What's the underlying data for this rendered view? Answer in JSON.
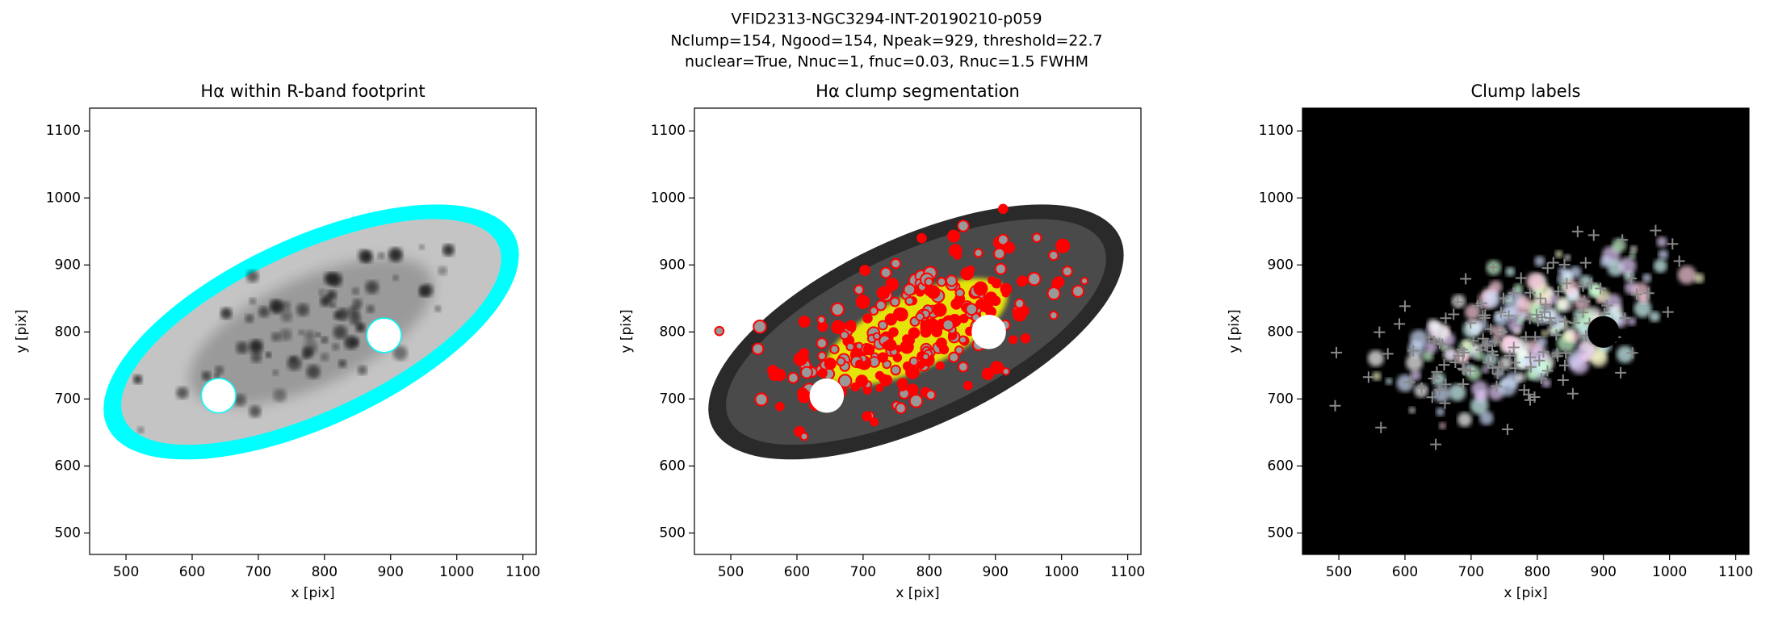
{
  "suptitle": [
    "VFID2313-NGC3294-INT-20190210-p059",
    "Nclump=154, Ngood=154, Npeak=929, threshold=22.7",
    "nuclear=True, Nnuc=1, fnuc=0.03, Rnuc=1.5 FWHM"
  ],
  "chart_data": [
    {
      "type": "image",
      "title": "Hα within R-band footprint",
      "xlabel": "x [pix]",
      "ylabel": "y [pix]",
      "xlim": [
        445,
        1120
      ],
      "ylim": [
        468,
        1134
      ],
      "xticks": [
        500,
        600,
        700,
        800,
        900,
        1000,
        1100
      ],
      "yticks": [
        500,
        600,
        700,
        800,
        900,
        1000,
        1100
      ]
    },
    {
      "type": "image",
      "title": "Hα clump segmentation",
      "xlabel": "x [pix]",
      "ylabel": "y [pix]",
      "xlim": [
        445,
        1120
      ],
      "ylim": [
        468,
        1134
      ],
      "xticks": [
        500,
        600,
        700,
        800,
        900,
        1000,
        1100
      ],
      "yticks": [
        500,
        600,
        700,
        800,
        900,
        1000,
        1100
      ]
    },
    {
      "type": "image",
      "title": "Clump labels",
      "xlabel": "x [pix]",
      "ylabel": "y [pix]",
      "xlim": [
        445,
        1120
      ],
      "ylim": [
        468,
        1134
      ],
      "xticks": [
        500,
        600,
        700,
        800,
        900,
        1000,
        1100
      ],
      "yticks": [
        500,
        600,
        700,
        800,
        900,
        1000,
        1100
      ]
    }
  ]
}
